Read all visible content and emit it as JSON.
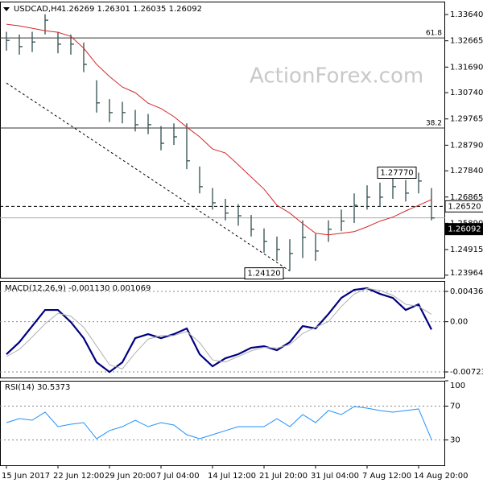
{
  "chart_data": [
    {
      "type": "ohlc",
      "title": "USDCAD,H4",
      "header": "1.26269 1.26301 1.26035 1.26092",
      "watermark": "ActionForex.com",
      "categories": [
        "15 Jun 2017",
        null,
        null,
        null,
        "22 Jun 12:00",
        null,
        null,
        null,
        "29 Jun 20:00",
        null,
        null,
        null,
        "7 Jul 04:00",
        null,
        null,
        null,
        "14 Jul 12:00",
        null,
        null,
        null,
        "21 Jul 20:00",
        null,
        null,
        null,
        "31 Jul 04:00",
        null,
        null,
        null,
        "7 Aug 12:00",
        null,
        null,
        null,
        "14 Aug 20:00",
        null
      ],
      "high": [
        1.33,
        1.329,
        1.33,
        1.3365,
        1.33,
        1.329,
        1.326,
        1.312,
        1.305,
        1.304,
        1.301,
        1.2995,
        1.295,
        1.296,
        1.296,
        1.28,
        1.272,
        1.268,
        1.266,
        1.262,
        1.257,
        1.254,
        1.253,
        1.26,
        1.255,
        1.26,
        1.264,
        1.27,
        1.273,
        1.274,
        1.276,
        1.275,
        1.2777,
        1.272
      ],
      "low": [
        1.323,
        1.3215,
        1.3225,
        1.329,
        1.322,
        1.3215,
        1.315,
        1.3,
        1.2965,
        1.296,
        1.293,
        1.292,
        1.286,
        1.288,
        1.279,
        1.27,
        1.264,
        1.26,
        1.258,
        1.254,
        1.248,
        1.245,
        1.2412,
        1.246,
        1.245,
        1.252,
        1.256,
        1.259,
        1.264,
        1.265,
        1.268,
        1.267,
        1.27,
        1.26
      ],
      "close": [
        1.3268,
        1.3245,
        1.3262,
        1.3343,
        1.3254,
        1.3254,
        1.3179,
        1.3036,
        1.3,
        1.3,
        1.2955,
        1.2955,
        1.2886,
        1.291,
        1.2821,
        1.2725,
        1.2665,
        1.2627,
        1.2617,
        1.2567,
        1.2522,
        1.2492,
        1.2477,
        1.2537,
        1.2486,
        1.2567,
        1.2597,
        1.2656,
        1.2686,
        1.2686,
        1.2725,
        1.2701,
        1.2746,
        1.2609
      ],
      "color": "#2f4f4f",
      "ma": {
        "color": "#d62728",
        "values": [
          1.3328,
          1.3322,
          1.3313,
          1.3304,
          1.3298,
          1.3283,
          1.3239,
          1.3179,
          1.3134,
          1.3095,
          1.3074,
          1.3035,
          1.3015,
          1.2985,
          1.2946,
          1.291,
          1.2865,
          1.285,
          1.2806,
          1.2761,
          1.2716,
          1.2656,
          1.2627,
          1.2588,
          1.2552,
          1.2546,
          1.2552,
          1.2558,
          1.2576,
          1.2597,
          1.2612,
          1.2635,
          1.2656,
          1.2677
        ]
      },
      "trendline": {
        "x": [
          0,
          22
        ],
        "y": [
          1.311,
          1.2412
        ]
      },
      "levels": [
        {
          "label": "61.8",
          "value": 1.3277
        },
        {
          "label": "38.2",
          "value": 1.2943
        }
      ],
      "high_label": {
        "label": "1.27770",
        "value": 1.2777
      },
      "low_label": {
        "label": "1.24120",
        "value": 1.2412
      },
      "level_label": {
        "label": "1.26520",
        "value": 1.2652
      },
      "price_label": {
        "label": "1.26092",
        "value": 1.26092
      },
      "ylim": [
        1.2387,
        1.3412
      ],
      "yticks": [
        {
          "value": 1.3364,
          "label": "1.33640"
        },
        1.32665,
        {
          "value": 1.3169,
          "label": "1.31690"
        },
        {
          "value": 1.3074,
          "label": "1.30740"
        },
        1.29765,
        {
          "value": 1.2879,
          "label": "1.28790"
        },
        {
          "value": 1.2784,
          "label": "1.27840"
        },
        1.26865,
        {
          "value": 1.2589,
          "label": "1.25890"
        },
        1.24915,
        1.23964
      ]
    },
    {
      "type": "line",
      "title": "MACD(12,26,9) -0.001130 0.001069",
      "series": [
        {
          "color": "#000080",
          "values": [
            -0.00468,
            -0.00295,
            -0.00063,
            0.00169,
            0.00169,
            -5e-05,
            -0.00237,
            -0.00584,
            -0.00724,
            -0.00584,
            -0.00237,
            -0.00179,
            -0.00237,
            -0.00179,
            -0.00097,
            -0.00468,
            -0.00642,
            -0.00526,
            -0.00468,
            -0.00376,
            -0.00353,
            -0.00411,
            -0.00295,
            -0.00063,
            -0.00097,
            0.00111,
            0.00343,
            0.00459,
            0.00482,
            0.00401,
            0.00343,
            0.00169,
            0.0025,
            -0.00113
          ]
        },
        {
          "color": "#b0b0b0",
          "values": [
            -0.005,
            -0.004,
            -0.0022,
            -0.0003,
            0.0012,
            0.0008,
            -0.0008,
            -0.0035,
            -0.0062,
            -0.0068,
            -0.0045,
            -0.0025,
            -0.002,
            -0.002,
            -0.0014,
            -0.003,
            -0.0055,
            -0.0058,
            -0.005,
            -0.0042,
            -0.0037,
            -0.0038,
            -0.0033,
            -0.0017,
            -0.0008,
            0,
            0.0022,
            0.004,
            0.0048,
            0.0045,
            0.0038,
            0.0025,
            0.0022,
            0.00107
          ]
        }
      ],
      "ylim": [
        -0.00804,
        0.00587
      ],
      "yticks": [
        0.004364,
        {
          "value": 0,
          "label": "0.00"
        },
        -0.007231
      ],
      "grid": true
    },
    {
      "type": "line",
      "title": "RSI(14) 30.5373",
      "series": [
        {
          "color": "#1e90ff",
          "values": [
            50.5,
            55.2,
            53.3,
            62.9,
            45.7,
            48.6,
            50.5,
            31.4,
            41.0,
            45.7,
            53.3,
            45.7,
            50.5,
            47.6,
            36.2,
            31.4,
            36.2,
            41.0,
            45.7,
            45.7,
            45.7,
            55.2,
            45.7,
            60.0,
            50.5,
            64.8,
            60.0,
            69.5,
            67.6,
            64.8,
            62.9,
            64.8,
            66.7,
            30.54
          ]
        }
      ],
      "ylim": [
        0,
        100
      ],
      "yticks": [
        30,
        70,
        100
      ],
      "grid": true
    }
  ]
}
